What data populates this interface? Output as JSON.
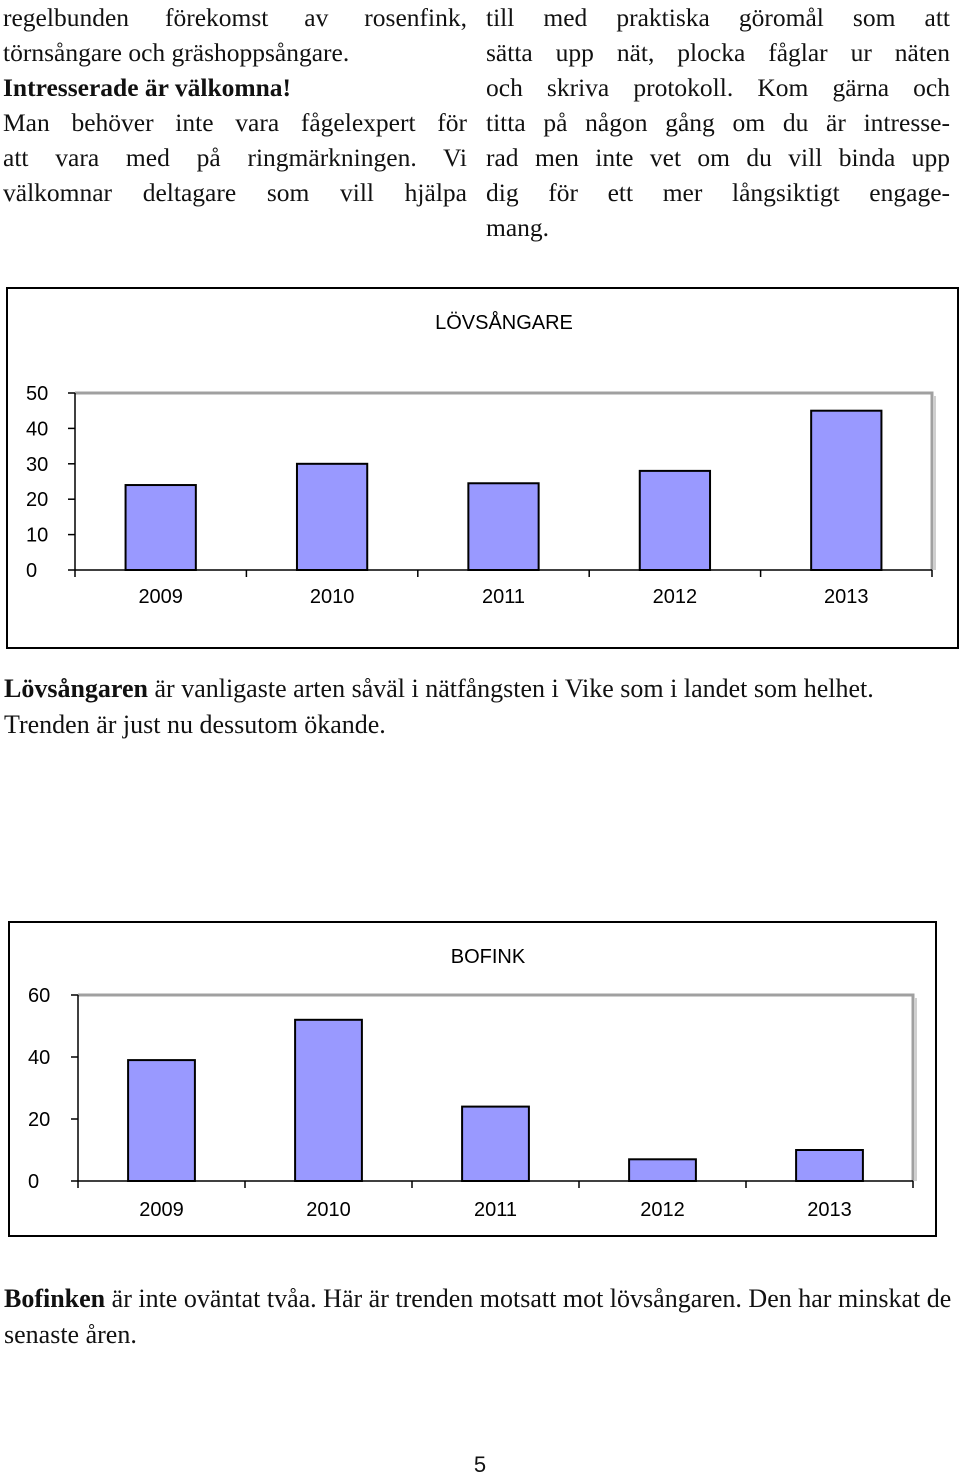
{
  "left_column": {
    "line1": "regelbunden förekomst av rosenfink,",
    "line2": "törnsångare och gräshoppsångare.",
    "heading": "Intresserade är välkomna!",
    "line3": "Man behöver inte vara fågelexpert för",
    "line4": "att vara med på ringmärkningen. Vi",
    "line5": "välkomnar deltagare som vill hjälpa"
  },
  "right_column": {
    "line1": "till med praktiska göromål som att",
    "line2": "sätta upp nät, plocka fåglar ur näten",
    "line3": "och skriva protokoll. Kom gärna och",
    "line4": "titta på någon gång om du är intresse-",
    "line5": "rad men inte vet om du vill binda upp",
    "line6": "dig för ett mer långsiktigt engage-",
    "line7": "mang."
  },
  "colors": {
    "bar_fill": "#9999ff",
    "bar_stroke": "#000000",
    "plot_border": "#a0a0a0"
  },
  "chart_data": [
    {
      "type": "bar",
      "title": "LÖVSÅNGARE",
      "categories": [
        "2009",
        "2010",
        "2011",
        "2012",
        "2013"
      ],
      "values": [
        24,
        30,
        24.5,
        28,
        45
      ],
      "yticks": [
        0,
        10,
        20,
        30,
        40,
        50
      ],
      "ylim": [
        0,
        50
      ],
      "xlabel": "",
      "ylabel": "",
      "grid": false,
      "legend": "none"
    },
    {
      "type": "bar",
      "title": "BOFINK",
      "categories": [
        "2009",
        "2010",
        "2011",
        "2012",
        "2013"
      ],
      "values": [
        39,
        52,
        24,
        7,
        10
      ],
      "yticks": [
        0,
        20,
        40,
        60
      ],
      "ylim": [
        0,
        60
      ],
      "xlabel": "",
      "ylabel": "",
      "grid": false,
      "legend": "none"
    }
  ],
  "caption1": {
    "bold": "Lövsångaren",
    "rest": " är vanligaste arten såväl i nätfångsten i Vike som i landet som helhet. Trenden är just nu dessutom ökande."
  },
  "caption2": {
    "bold": "Bofinken",
    "rest": " är inte oväntat tvåa. Här är trenden motsatt mot lövsångaren. Den har minskat de senaste åren."
  },
  "page_number": "5"
}
